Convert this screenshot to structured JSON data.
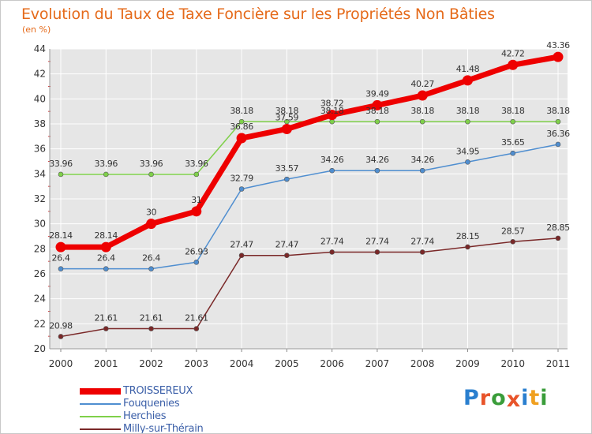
{
  "title": "Evolution du Taux de Taxe Foncière sur les Propriétés Non Bâties",
  "unit_label": "(en %)",
  "logo": {
    "letters": [
      "P",
      "r",
      "o",
      "x",
      "i",
      "t",
      "i"
    ],
    "colors": [
      "#2a7fcf",
      "#e8542a",
      "#3a9d3a",
      "#e8542a",
      "#2a7fcf",
      "#f0a020",
      "#3a9d3a"
    ]
  },
  "chart_data": {
    "type": "line",
    "title": "Evolution du Taux de Taxe Foncière sur les Propriétés Non Bâties",
    "ylabel": "(en %)",
    "xlabel": "",
    "x": [
      "2000",
      "2001",
      "2002",
      "2003",
      "2004",
      "2005",
      "2006",
      "2007",
      "2008",
      "2009",
      "2010",
      "2011"
    ],
    "ylim": [
      20,
      44
    ],
    "yticks": [
      20,
      22,
      24,
      26,
      28,
      30,
      32,
      34,
      36,
      38,
      40,
      42,
      44
    ],
    "grid": true,
    "legend_position": "bottom-left",
    "series": [
      {
        "name": "TROISSEREUX",
        "color": "#ee0000",
        "values": [
          28.14,
          28.14,
          30,
          31,
          36.86,
          37.59,
          38.72,
          39.49,
          40.27,
          41.48,
          42.72,
          43.36
        ],
        "labels": [
          "28.14",
          "28.14",
          "30",
          "31",
          "36.86",
          "37.59",
          "38.72",
          "39.49",
          "40.27",
          "41.48",
          "42.72",
          "43.36"
        ]
      },
      {
        "name": "Fouquenies",
        "color": "#4f8ed0",
        "values": [
          26.4,
          26.4,
          26.4,
          26.93,
          32.79,
          33.57,
          34.26,
          34.26,
          34.26,
          34.95,
          35.65,
          36.36
        ],
        "labels": [
          "26.4",
          "26.4",
          "26.4",
          "26.93",
          "32.79",
          "33.57",
          "34.26",
          "34.26",
          "34.26",
          "34.95",
          "35.65",
          "36.36"
        ]
      },
      {
        "name": "Herchies",
        "color": "#7fd04a",
        "values": [
          33.96,
          33.96,
          33.96,
          33.96,
          38.18,
          38.18,
          38.18,
          38.18,
          38.18,
          38.18,
          38.18,
          38.18
        ],
        "labels": [
          "33.96",
          "33.96",
          "33.96",
          "33.96",
          "38.18",
          "38.18",
          "38.18",
          "38.18",
          "38.18",
          "38.18",
          "38.18",
          "38.18"
        ]
      },
      {
        "name": "Milly-sur-Thérain",
        "color": "#7a2828",
        "values": [
          20.98,
          21.61,
          21.61,
          21.61,
          27.47,
          27.47,
          27.74,
          27.74,
          27.74,
          28.15,
          28.57,
          28.85
        ],
        "labels": [
          "20.98",
          "21.61",
          "21.61",
          "21.61",
          "27.47",
          "27.47",
          "27.74",
          "27.74",
          "27.74",
          "28.15",
          "28.57",
          "28.85"
        ]
      }
    ]
  }
}
